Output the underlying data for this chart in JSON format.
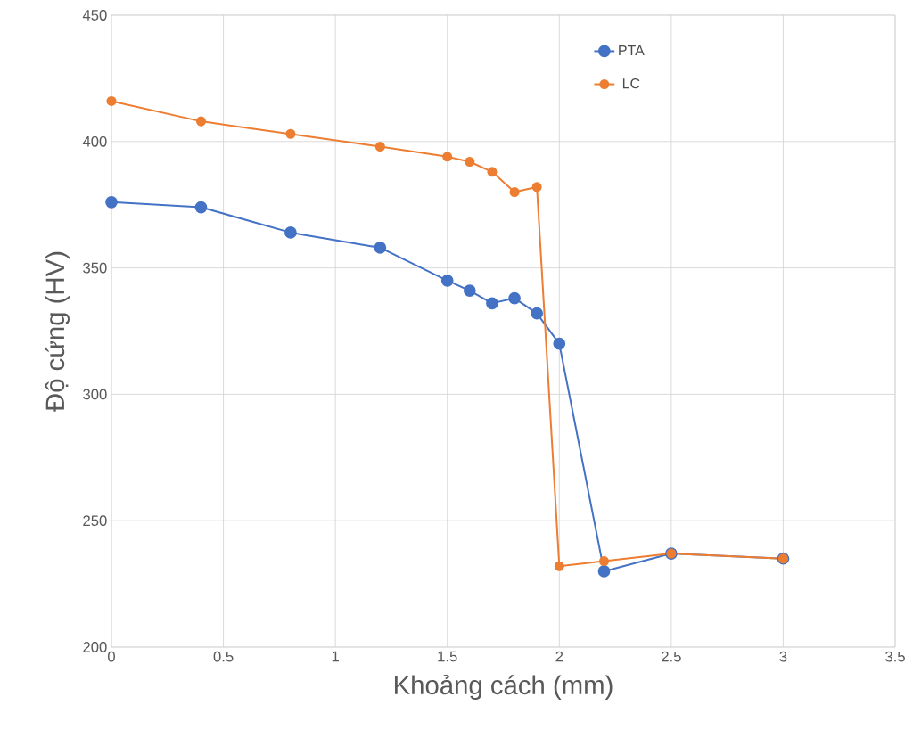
{
  "chart_data": {
    "type": "line",
    "xlabel": "Khoảng cách (mm)",
    "ylabel": "Độ cứng (HV)",
    "x": [
      0,
      0.4,
      0.8,
      1.2,
      1.5,
      1.6,
      1.7,
      1.8,
      1.9,
      2.0,
      2.2,
      2.5,
      3.0
    ],
    "series": [
      {
        "name": "PTA",
        "color": "#4472c4",
        "values": [
          376,
          374,
          364,
          358,
          345,
          341,
          336,
          338,
          332,
          320,
          230,
          237,
          235
        ]
      },
      {
        "name": "LC",
        "color": "#ed7d31",
        "values": [
          416,
          408,
          403,
          398,
          394,
          392,
          388,
          380,
          382,
          232,
          234,
          237,
          235
        ]
      }
    ],
    "xlim": [
      0,
      3.5
    ],
    "ylim": [
      200,
      450
    ],
    "xticks": [
      0,
      0.5,
      1,
      1.5,
      2,
      2.5,
      3,
      3.5
    ],
    "yticks": [
      200,
      250,
      300,
      350,
      400,
      450
    ],
    "grid": true,
    "legend": "top right",
    "marker": "circle",
    "line_style": "solid"
  }
}
